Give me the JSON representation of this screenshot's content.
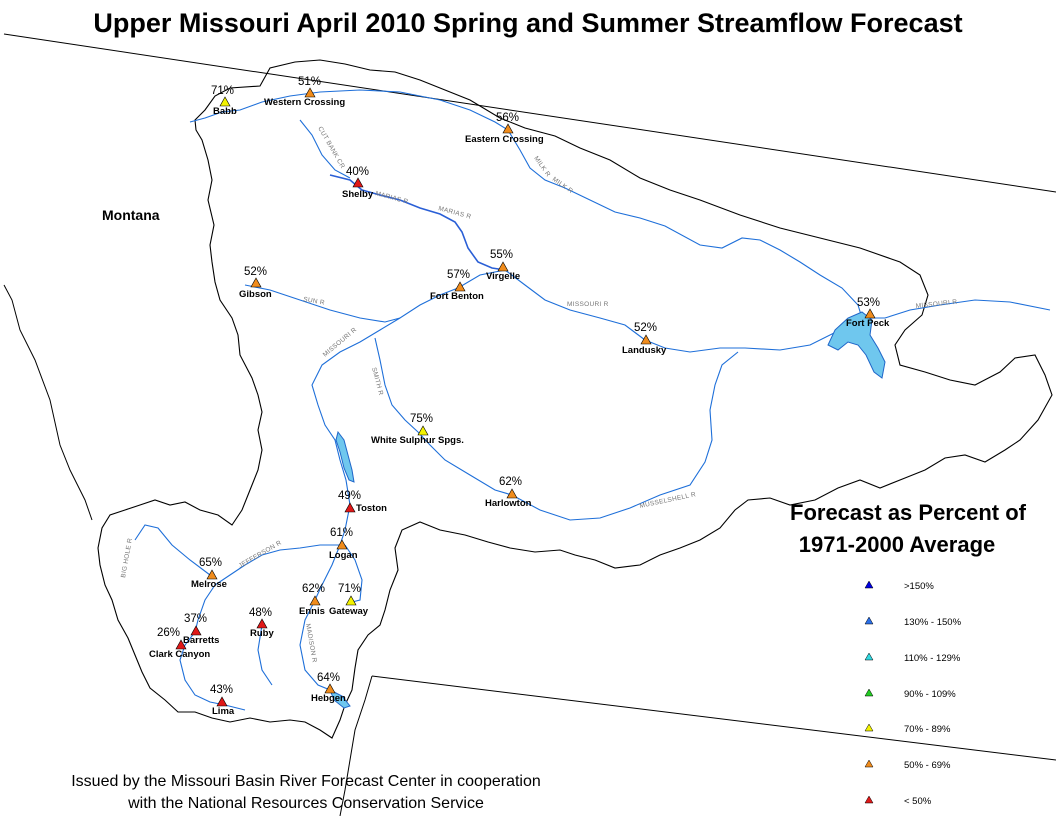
{
  "title": "Upper Missouri April 2010 Spring and Summer Streamflow Forecast",
  "region_label": "Montana",
  "legend": {
    "title_line1": "Forecast as Percent of",
    "title_line2": "1971-2000 Average",
    "items": [
      {
        "label": ">150%",
        "color": "#0000e0"
      },
      {
        "label": "130% - 150%",
        "color": "#2a6fe8"
      },
      {
        "label": "110% - 129%",
        "color": "#30d8e0"
      },
      {
        "label": "90% - 109%",
        "color": "#22cc22"
      },
      {
        "label": "70% - 89%",
        "color": "#f2f200"
      },
      {
        "label": "50% - 69%",
        "color": "#f08c1c"
      },
      {
        "label": "< 50%",
        "color": "#e01818"
      }
    ]
  },
  "footer": {
    "line1": "Issued by the Missouri Basin River Forecast Center in cooperation",
    "line2": "with the National Resources Conservation Service"
  },
  "sites": [
    {
      "name": "Babb",
      "pct": "71%",
      "color": "#f2f200"
    },
    {
      "name": "Western Crossing",
      "pct": "51%",
      "color": "#f08c1c"
    },
    {
      "name": "Eastern Crossing",
      "pct": "56%",
      "color": "#f08c1c"
    },
    {
      "name": "Shelby",
      "pct": "40%",
      "color": "#e01818"
    },
    {
      "name": "Gibson",
      "pct": "52%",
      "color": "#f08c1c"
    },
    {
      "name": "Virgelle",
      "pct": "55%",
      "color": "#f08c1c"
    },
    {
      "name": "Fort Benton",
      "pct": "57%",
      "color": "#f08c1c"
    },
    {
      "name": "Landusky",
      "pct": "52%",
      "color": "#f08c1c"
    },
    {
      "name": "Fort Peck",
      "pct": "53%",
      "color": "#f08c1c"
    },
    {
      "name": "White Sulphur Spgs.",
      "pct": "75%",
      "color": "#f2f200"
    },
    {
      "name": "Harlowton",
      "pct": "62%",
      "color": "#f08c1c"
    },
    {
      "name": "Toston",
      "pct": "49%",
      "color": "#e01818"
    },
    {
      "name": "Logan",
      "pct": "61%",
      "color": "#f08c1c"
    },
    {
      "name": "Melrose",
      "pct": "65%",
      "color": "#f08c1c"
    },
    {
      "name": "Ennis",
      "pct": "62%",
      "color": "#f08c1c"
    },
    {
      "name": "Gateway",
      "pct": "71%",
      "color": "#f2f200"
    },
    {
      "name": "Ruby",
      "pct": "48%",
      "color": "#e01818"
    },
    {
      "name": "Barretts",
      "pct": "37%",
      "color": "#e01818"
    },
    {
      "name": "Clark Canyon",
      "pct": "26%",
      "color": "#e01818"
    },
    {
      "name": "Lima",
      "pct": "43%",
      "color": "#e01818"
    },
    {
      "name": "Hebgen",
      "pct": "64%",
      "color": "#f08c1c"
    }
  ],
  "rivers": {
    "cut_bank": "CUT BANK CR",
    "milk1": "MILK R",
    "milk2": "MILK R",
    "marias1": "MARIAS R",
    "marias2": "MARIAS R",
    "missouri1": "MISSOURI R",
    "missouri2": "MISSOURI R",
    "missouri3": "MISSOURI R",
    "sun": "SUN R",
    "smith": "SMITH R",
    "musselshell": "MUSSELSHELL R",
    "jefferson": "JEFFERSON R",
    "big_hole": "BIG HOLE R",
    "madison": "MADISON R"
  }
}
